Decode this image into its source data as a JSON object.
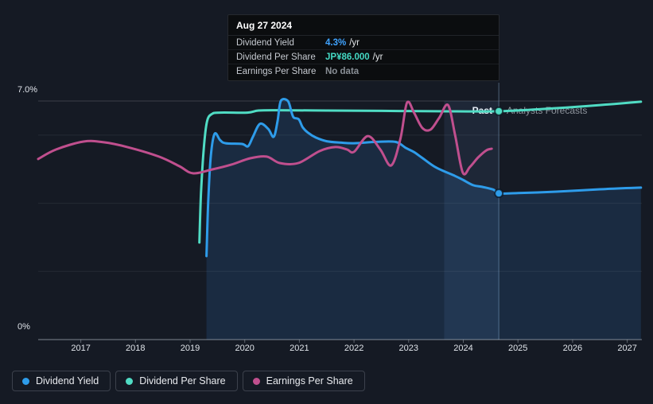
{
  "colors": {
    "background": "#151a24",
    "dividend_yield": "#2E9CEA",
    "dividend_per_share": "#50DCC4",
    "earnings_per_share": "#C04F8E",
    "tooltip_yield_value": "#3FA3FF",
    "tooltip_dps_value": "#44D9C4",
    "tooltip_no_data": "#8a9097",
    "area_fill": "rgba(56,139,215,0.16)",
    "band_fill": "rgba(121,176,255,0.09)"
  },
  "tooltip": {
    "date": "Aug 27 2024",
    "rows": [
      {
        "label": "Dividend Yield",
        "value": "4.3%",
        "suffix": "/yr",
        "value_color": "#3FA3FF"
      },
      {
        "label": "Dividend Per Share",
        "value": "JP¥86.000",
        "suffix": "/yr",
        "value_color": "#44D9C4"
      },
      {
        "label": "Earnings Per Share",
        "value": "No data",
        "suffix": "",
        "value_color": "#8a9097"
      }
    ]
  },
  "annotations": {
    "past_label": "Past",
    "forecast_label": "Analysts Forecasts"
  },
  "legend": [
    {
      "label": "Dividend Yield",
      "color": "#2E9CEA"
    },
    {
      "label": "Dividend Per Share",
      "color": "#50DCC4"
    },
    {
      "label": "Earnings Per Share",
      "color": "#C04F8E"
    }
  ],
  "chart_data": {
    "type": "line",
    "title": "Dividend history and forecast",
    "x_axis": {
      "unit": "year",
      "range": [
        2016.2,
        2027.3
      ],
      "tick_labels": [
        "2017",
        "2018",
        "2019",
        "2020",
        "2021",
        "2022",
        "2023",
        "2024",
        "2025",
        "2026",
        "2027"
      ],
      "ticks": [
        2017,
        2018,
        2019,
        2020,
        2021,
        2022,
        2023,
        2024,
        2025,
        2026,
        2027
      ]
    },
    "y_axis": {
      "unit": "percent",
      "range": [
        0,
        7
      ],
      "top_label": "7.0%",
      "bottom_label": "0%",
      "labeled_gridlines": [
        0,
        7
      ],
      "minor_gridlines": [
        2,
        4,
        6
      ]
    },
    "divider_x": 2024.65,
    "highlight_band_x": [
      2023.65,
      2024.65
    ],
    "series": [
      {
        "name": "Dividend Per Share",
        "color": "#50DCC4",
        "area_fill": false,
        "marker_at": [
          2024.65,
          6.7
        ],
        "note": "plotted on hidden per-share scale; value at marker = JP¥86.000/yr",
        "points": [
          [
            2019.17,
            2.85
          ],
          [
            2019.2,
            4.3
          ],
          [
            2019.25,
            5.6
          ],
          [
            2019.31,
            6.4
          ],
          [
            2019.4,
            6.62
          ],
          [
            2019.55,
            6.66
          ],
          [
            2020.05,
            6.66
          ],
          [
            2020.25,
            6.72
          ],
          [
            2020.6,
            6.73
          ],
          [
            2021.5,
            6.72
          ],
          [
            2022.5,
            6.71
          ],
          [
            2023.5,
            6.7
          ],
          [
            2024.65,
            6.7
          ],
          [
            2025.7,
            6.79
          ],
          [
            2026.5,
            6.88
          ],
          [
            2027.25,
            6.98
          ]
        ]
      },
      {
        "name": "Dividend Yield",
        "color": "#2E9CEA",
        "area_fill": true,
        "marker_at": [
          2024.65,
          4.29
        ],
        "points": [
          [
            2019.3,
            2.45
          ],
          [
            2019.33,
            4.0
          ],
          [
            2019.38,
            5.4
          ],
          [
            2019.45,
            6.04
          ],
          [
            2019.55,
            5.85
          ],
          [
            2019.65,
            5.76
          ],
          [
            2019.95,
            5.74
          ],
          [
            2020.06,
            5.67
          ],
          [
            2020.15,
            5.95
          ],
          [
            2020.28,
            6.33
          ],
          [
            2020.43,
            6.18
          ],
          [
            2020.53,
            5.95
          ],
          [
            2020.6,
            6.4
          ],
          [
            2020.66,
            7.0
          ],
          [
            2020.79,
            7.0
          ],
          [
            2020.86,
            6.65
          ],
          [
            2020.9,
            6.51
          ],
          [
            2020.99,
            6.46
          ],
          [
            2021.06,
            6.23
          ],
          [
            2021.15,
            6.08
          ],
          [
            2021.3,
            5.93
          ],
          [
            2021.5,
            5.82
          ],
          [
            2021.75,
            5.78
          ],
          [
            2022.0,
            5.76
          ],
          [
            2022.4,
            5.8
          ],
          [
            2022.76,
            5.8
          ],
          [
            2022.95,
            5.62
          ],
          [
            2023.1,
            5.5
          ],
          [
            2023.25,
            5.33
          ],
          [
            2023.5,
            5.05
          ],
          [
            2023.85,
            4.8
          ],
          [
            2024.0,
            4.68
          ],
          [
            2024.18,
            4.53
          ],
          [
            2024.35,
            4.48
          ],
          [
            2024.55,
            4.4
          ],
          [
            2024.65,
            4.29
          ],
          [
            2025.0,
            4.3
          ],
          [
            2025.7,
            4.34
          ],
          [
            2026.5,
            4.41
          ],
          [
            2027.25,
            4.46
          ]
        ]
      },
      {
        "name": "Earnings Per Share",
        "color": "#C04F8E",
        "area_fill": false,
        "points": [
          [
            2016.22,
            5.3
          ],
          [
            2016.55,
            5.58
          ],
          [
            2017.05,
            5.81
          ],
          [
            2017.42,
            5.79
          ],
          [
            2017.85,
            5.65
          ],
          [
            2018.43,
            5.37
          ],
          [
            2018.8,
            5.09
          ],
          [
            2019.05,
            4.88
          ],
          [
            2019.4,
            4.99
          ],
          [
            2019.75,
            5.13
          ],
          [
            2020.1,
            5.32
          ],
          [
            2020.4,
            5.37
          ],
          [
            2020.64,
            5.18
          ],
          [
            2020.98,
            5.18
          ],
          [
            2021.37,
            5.53
          ],
          [
            2021.66,
            5.65
          ],
          [
            2021.87,
            5.58
          ],
          [
            2022.0,
            5.51
          ],
          [
            2022.25,
            5.97
          ],
          [
            2022.48,
            5.58
          ],
          [
            2022.68,
            5.11
          ],
          [
            2022.85,
            5.9
          ],
          [
            2022.97,
            6.95
          ],
          [
            2023.1,
            6.65
          ],
          [
            2023.25,
            6.21
          ],
          [
            2023.4,
            6.16
          ],
          [
            2023.56,
            6.51
          ],
          [
            2023.72,
            6.88
          ],
          [
            2023.85,
            6.0
          ],
          [
            2023.99,
            4.9
          ],
          [
            2024.12,
            5.06
          ],
          [
            2024.27,
            5.34
          ],
          [
            2024.42,
            5.55
          ],
          [
            2024.52,
            5.6
          ]
        ]
      }
    ]
  }
}
